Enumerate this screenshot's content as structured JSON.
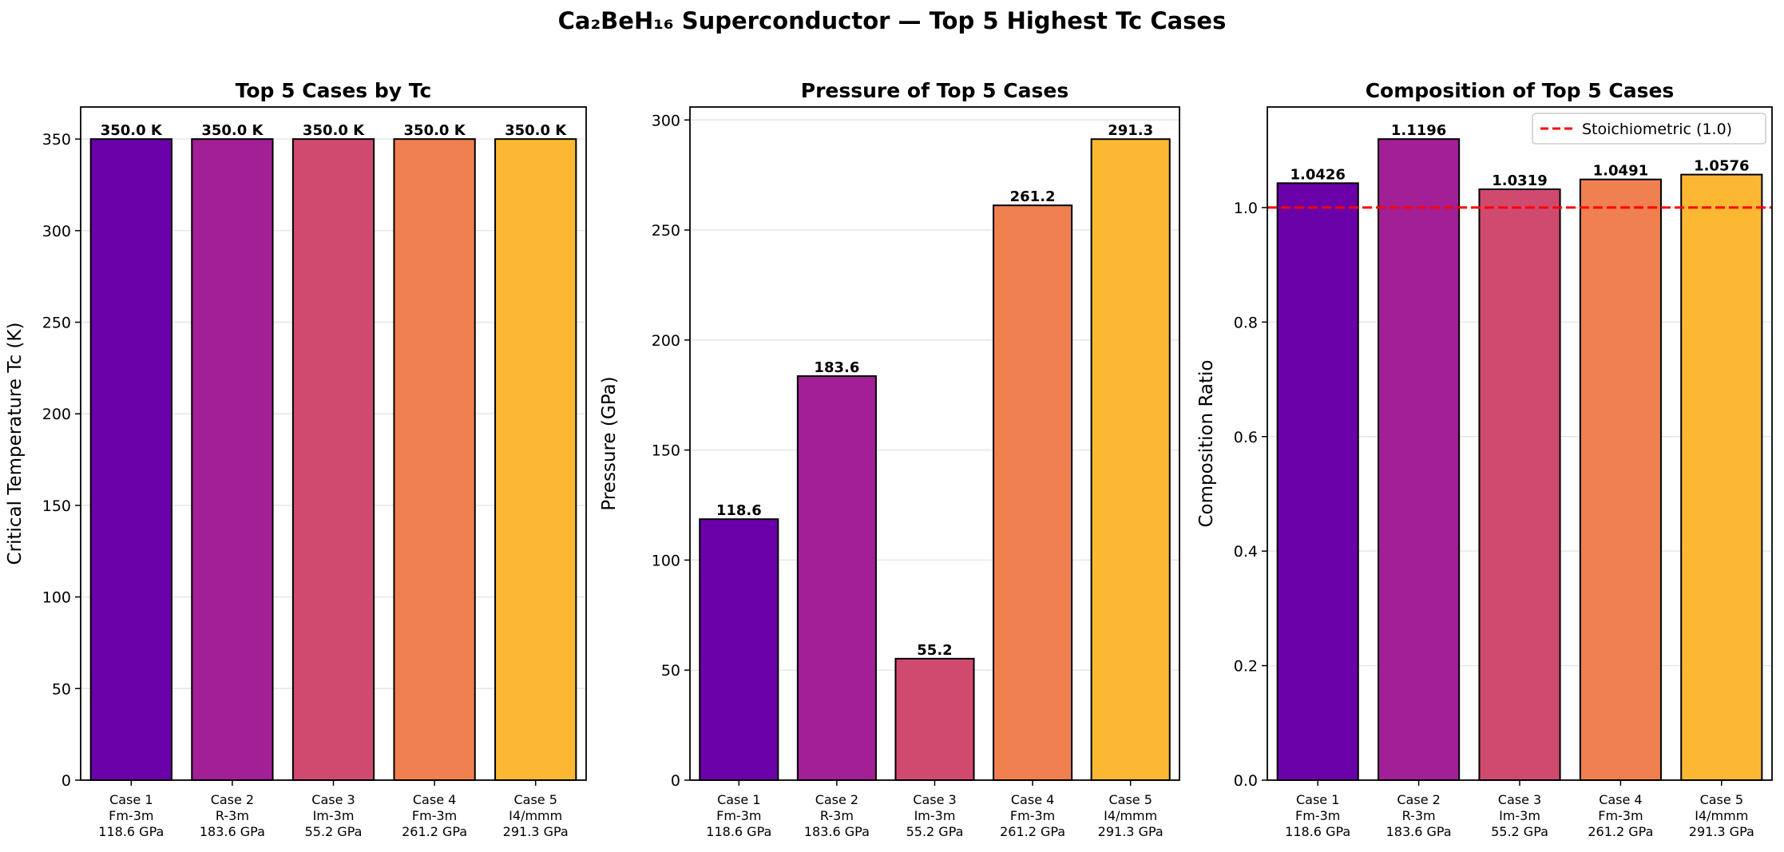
{
  "suptitle": "Ca₂BeH₁₆ Superconductor — Top 5 Highest Tc Cases",
  "colors": [
    "#6a00a8",
    "#a21f95",
    "#d04a6f",
    "#f08050",
    "#fdb833"
  ],
  "chart_data": [
    {
      "type": "bar",
      "title": "Top 5 Cases by Tc",
      "xlabel": "",
      "ylabel": "Critical Temperature Tc (K)",
      "categories": [
        [
          "Case 1",
          "Fm-3m",
          "118.6 GPa"
        ],
        [
          "Case 2",
          "R-3m",
          "183.6 GPa"
        ],
        [
          "Case 3",
          "Im-3m",
          "55.2 GPa"
        ],
        [
          "Case 4",
          "Fm-3m",
          "261.2 GPa"
        ],
        [
          "Case 5",
          "I4/mmm",
          "291.3 GPa"
        ]
      ],
      "values": [
        350.0,
        350.0,
        350.0,
        350.0,
        350.0
      ],
      "value_labels": [
        "350.0 K",
        "350.0 K",
        "350.0 K",
        "350.0 K",
        "350.0 K"
      ],
      "ylim": [
        0,
        367.5
      ],
      "yticks": [
        0,
        50,
        100,
        150,
        200,
        250,
        300,
        350
      ],
      "ytick_labels": [
        "0",
        "50",
        "100",
        "150",
        "200",
        "250",
        "300",
        "350"
      ],
      "grid": true
    },
    {
      "type": "bar",
      "title": "Pressure of Top 5 Cases",
      "xlabel": "",
      "ylabel": "Pressure (GPa)",
      "categories": [
        [
          "Case 1",
          "Fm-3m",
          "118.6 GPa"
        ],
        [
          "Case 2",
          "R-3m",
          "183.6 GPa"
        ],
        [
          "Case 3",
          "Im-3m",
          "55.2 GPa"
        ],
        [
          "Case 4",
          "Fm-3m",
          "261.2 GPa"
        ],
        [
          "Case 5",
          "I4/mmm",
          "291.3 GPa"
        ]
      ],
      "values": [
        118.6,
        183.6,
        55.2,
        261.2,
        291.3
      ],
      "value_labels": [
        "118.6",
        "183.6",
        "55.2",
        "261.2",
        "291.3"
      ],
      "ylim": [
        0,
        305.9
      ],
      "yticks": [
        0,
        50,
        100,
        150,
        200,
        250,
        300
      ],
      "ytick_labels": [
        "0",
        "50",
        "100",
        "150",
        "200",
        "250",
        "300"
      ],
      "grid": true
    },
    {
      "type": "bar",
      "title": "Composition of Top 5 Cases",
      "xlabel": "",
      "ylabel": "Composition Ratio",
      "categories": [
        [
          "Case 1",
          "Fm-3m",
          "118.6 GPa"
        ],
        [
          "Case 2",
          "R-3m",
          "183.6 GPa"
        ],
        [
          "Case 3",
          "Im-3m",
          "55.2 GPa"
        ],
        [
          "Case 4",
          "Fm-3m",
          "261.2 GPa"
        ],
        [
          "Case 5",
          "I4/mmm",
          "291.3 GPa"
        ]
      ],
      "values": [
        1.0426,
        1.1196,
        1.0319,
        1.0491,
        1.0576
      ],
      "value_labels": [
        "1.0426",
        "1.1196",
        "1.0319",
        "1.0491",
        "1.0576"
      ],
      "ylim": [
        0,
        1.1756
      ],
      "yticks": [
        0.0,
        0.2,
        0.4,
        0.6,
        0.8,
        1.0
      ],
      "ytick_labels": [
        "0.0",
        "0.2",
        "0.4",
        "0.6",
        "0.8",
        "1.0"
      ],
      "grid": true,
      "reference_line": {
        "y": 1.0,
        "label": "Stoichiometric (1.0)",
        "color": "#ff0000",
        "style": "dashed"
      },
      "legend_position": "top-right"
    }
  ]
}
